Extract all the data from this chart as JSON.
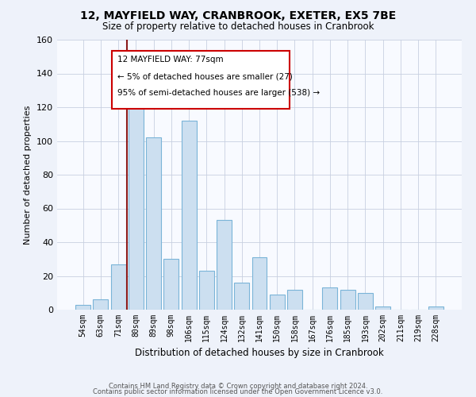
{
  "title": "12, MAYFIELD WAY, CRANBROOK, EXETER, EX5 7BE",
  "subtitle": "Size of property relative to detached houses in Cranbrook",
  "xlabel": "Distribution of detached houses by size in Cranbrook",
  "ylabel": "Number of detached properties",
  "bar_labels": [
    "54sqm",
    "63sqm",
    "71sqm",
    "80sqm",
    "89sqm",
    "98sqm",
    "106sqm",
    "115sqm",
    "124sqm",
    "132sqm",
    "141sqm",
    "150sqm",
    "158sqm",
    "167sqm",
    "176sqm",
    "185sqm",
    "193sqm",
    "202sqm",
    "211sqm",
    "219sqm",
    "228sqm"
  ],
  "bar_values": [
    3,
    6,
    27,
    121,
    102,
    30,
    112,
    23,
    53,
    16,
    31,
    9,
    12,
    0,
    13,
    12,
    10,
    2,
    0,
    0,
    2
  ],
  "bar_color": "#ccdff0",
  "bar_edge_color": "#7ab4d8",
  "ylim": [
    0,
    160
  ],
  "yticks": [
    0,
    20,
    40,
    60,
    80,
    100,
    120,
    140,
    160
  ],
  "vline_x_index": 3,
  "vline_color": "#8b1a1a",
  "annotation_line1": "12 MAYFIELD WAY: 77sqm",
  "annotation_line2": "← 5% of detached houses are smaller (27)",
  "annotation_line3": "95% of semi-detached houses are larger (538) →",
  "footer_line1": "Contains HM Land Registry data © Crown copyright and database right 2024.",
  "footer_line2": "Contains public sector information licensed under the Open Government Licence v3.0.",
  "bg_color": "#eef2fa",
  "plot_bg_color": "#f8faff",
  "grid_color": "#c8d0e0"
}
